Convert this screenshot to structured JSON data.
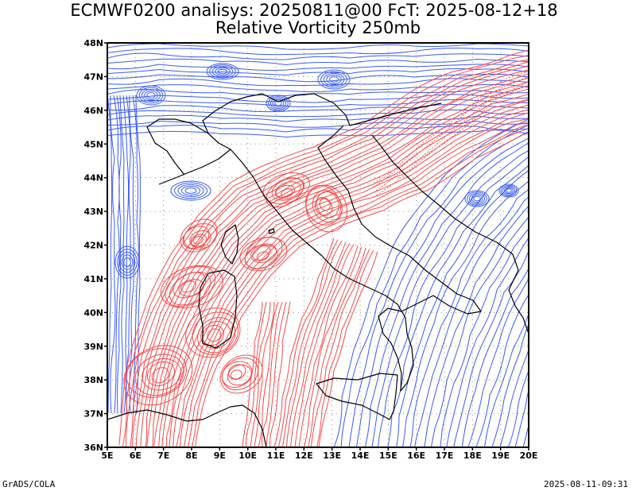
{
  "header": {
    "title_line1": "ECMWF0200 analisys: 20250811@00 FcT: 2025-08-12+18",
    "title_line2": "Relative Vorticity 250mb"
  },
  "footer": {
    "left": "GrADS/COLA",
    "right": "2025-08-11-09:31"
  },
  "map": {
    "lon_labels": [
      "5E",
      "6E",
      "7E",
      "8E",
      "9E",
      "10E",
      "11E",
      "12E",
      "13E",
      "14E",
      "15E",
      "16E",
      "17E",
      "18E",
      "19E",
      "20E"
    ],
    "lat_labels": [
      "48N",
      "47N",
      "46N",
      "45N",
      "44N",
      "43N",
      "42N",
      "41N",
      "40N",
      "39N",
      "38N",
      "37N",
      "36N"
    ],
    "colors": {
      "positive_vorticity": "#f24b4b",
      "negative_vorticity": "#3a5cf0",
      "coastline": "#000000",
      "grid": "#888888"
    }
  }
}
